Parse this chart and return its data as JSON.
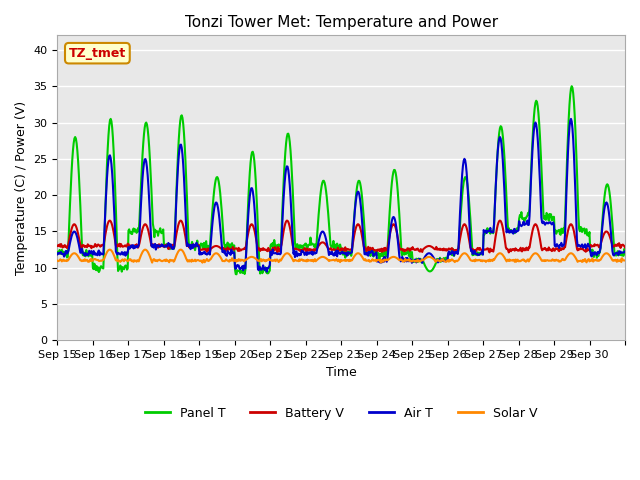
{
  "title": "Tonzi Tower Met: Temperature and Power",
  "xlabel": "Time",
  "ylabel": "Temperature (C) / Power (V)",
  "ylim": [
    0,
    42
  ],
  "yticks": [
    0,
    5,
    10,
    15,
    20,
    25,
    30,
    35,
    40
  ],
  "x_tick_positions": [
    0,
    1,
    2,
    3,
    4,
    5,
    6,
    7,
    8,
    9,
    10,
    11,
    12,
    13,
    14,
    15,
    16
  ],
  "x_labels": [
    "Sep 15",
    "Sep 16",
    "Sep 17",
    "Sep 18",
    "Sep 19",
    "Sep 20",
    "Sep 21",
    "Sep 22",
    "Sep 23",
    "Sep 24",
    "Sep 25",
    "Sep 26",
    "Sep 27",
    "Sep 28",
    "Sep 29",
    "Sep 30",
    ""
  ],
  "bg_color": "#e8e8e8",
  "fig_color": "#ffffff",
  "grid_color": "#ffffff",
  "annotation_text": "TZ_tmet",
  "annotation_color": "#cc0000",
  "annotation_bg": "#ffffcc",
  "annotation_border": "#cc8800",
  "series": {
    "panel_t": {
      "color": "#00cc00",
      "label": "Panel T",
      "lw": 1.5
    },
    "battery_v": {
      "color": "#cc0000",
      "label": "Battery V",
      "lw": 1.5
    },
    "air_t": {
      "color": "#0000cc",
      "label": "Air T",
      "lw": 1.5
    },
    "solar_v": {
      "color": "#ff8800",
      "label": "Solar V",
      "lw": 1.5
    }
  }
}
